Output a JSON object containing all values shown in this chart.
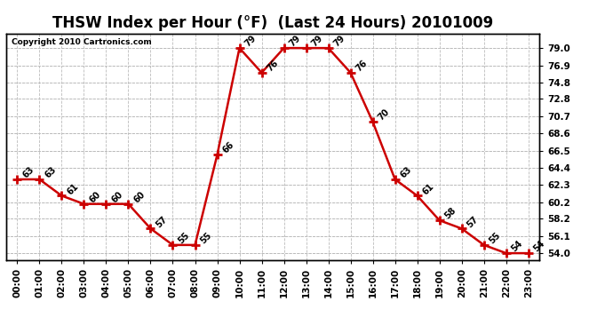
{
  "title": "THSW Index per Hour (°F)  (Last 24 Hours) 20101009",
  "copyright": "Copyright 2010 Cartronics.com",
  "hours": [
    "00:00",
    "01:00",
    "02:00",
    "03:00",
    "04:00",
    "05:00",
    "06:00",
    "07:00",
    "08:00",
    "09:00",
    "10:00",
    "11:00",
    "12:00",
    "13:00",
    "14:00",
    "15:00",
    "16:00",
    "17:00",
    "18:00",
    "19:00",
    "20:00",
    "21:00",
    "22:00",
    "23:00"
  ],
  "values": [
    63,
    63,
    61,
    60,
    60,
    60,
    57,
    55,
    55,
    66,
    79,
    76,
    79,
    79,
    79,
    76,
    70,
    63,
    61,
    58,
    57,
    55,
    54,
    54
  ],
  "line_color": "#cc0000",
  "marker_color": "#cc0000",
  "bg_color": "#ffffff",
  "grid_color": "#bbbbbb",
  "title_fontsize": 12,
  "annot_fontsize": 7,
  "tick_fontsize": 7.5,
  "ylabel_right_ticks": [
    54.0,
    56.1,
    58.2,
    60.2,
    62.3,
    64.4,
    66.5,
    68.6,
    70.7,
    72.8,
    74.8,
    76.9,
    79.0
  ],
  "ylim_min": 53.2,
  "ylim_max": 80.8
}
